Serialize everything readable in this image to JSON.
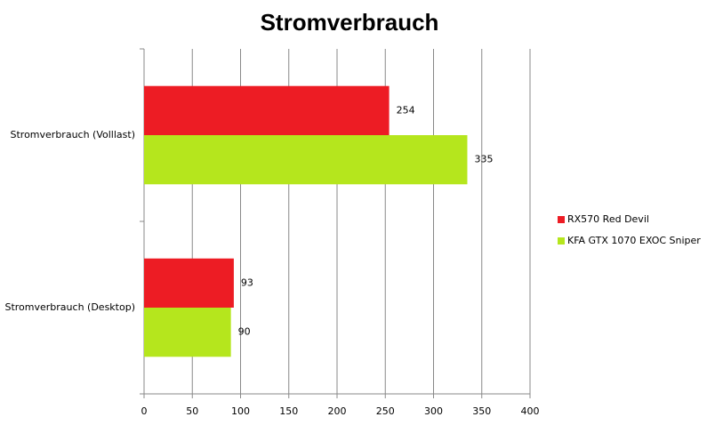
{
  "chart_data": {
    "type": "hbar",
    "title": "Stromverbrauch",
    "categories": [
      "Stromverbrauch (Volllast)",
      "Stromverbrauch (Desktop)"
    ],
    "series": [
      {
        "name": "RX570 Red Devil",
        "color": "#ed1c24",
        "values": [
          254,
          93
        ]
      },
      {
        "name": "KFA GTX 1070 EXOC Sniper",
        "color": "#b5e61d",
        "values": [
          335,
          90
        ]
      }
    ],
    "xlim": [
      0,
      400
    ],
    "xticks": [
      0,
      50,
      100,
      150,
      200,
      250,
      300,
      350,
      400
    ],
    "grid": true,
    "legend": "right"
  }
}
